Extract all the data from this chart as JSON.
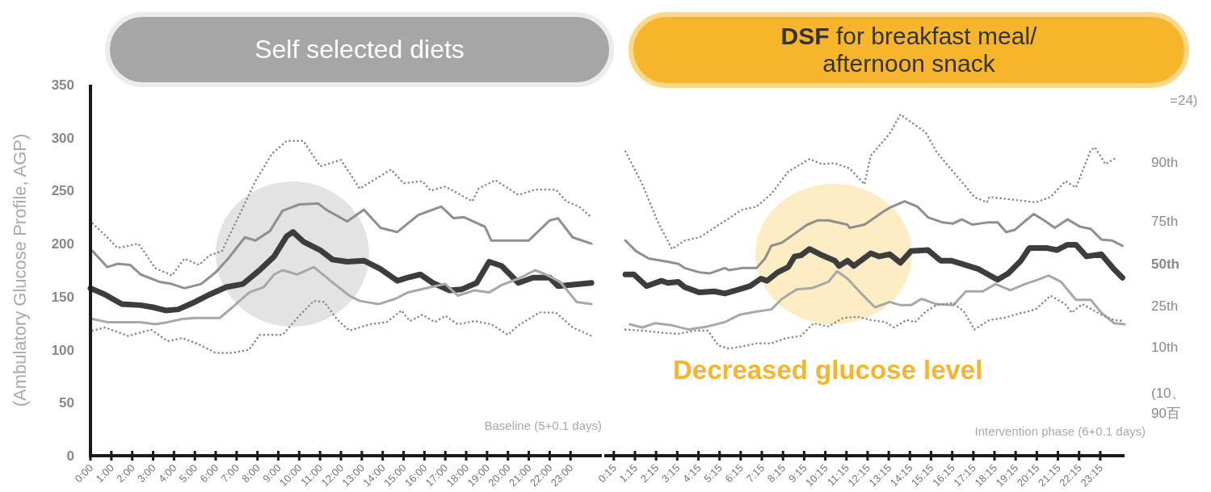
{
  "chart_data": [
    {
      "type": "line",
      "title": "Self selected diets",
      "ylabel": "(Ambulatory Glucose Profile, AGP)",
      "annotations": [
        "Baseline (5+0.1 days)"
      ],
      "xlim": [
        0,
        24.5
      ],
      "ylim": [
        0,
        350
      ],
      "yticks": [
        0,
        50,
        100,
        150,
        200,
        250,
        300,
        350
      ],
      "xticks": [
        {
          "value": 0,
          "label": "0:00"
        },
        {
          "value": 1,
          "label": "1:00"
        },
        {
          "value": 2,
          "label": "2:00"
        },
        {
          "value": 3,
          "label": "3:00"
        },
        {
          "value": 4,
          "label": "4:00"
        },
        {
          "value": 5,
          "label": "5:00"
        },
        {
          "value": 6,
          "label": "6:00"
        },
        {
          "value": 7,
          "label": "7:00"
        },
        {
          "value": 8,
          "label": "8:00"
        },
        {
          "value": 9,
          "label": "9:00"
        },
        {
          "value": 10,
          "label": "10:00"
        },
        {
          "value": 11,
          "label": "11:00"
        },
        {
          "value": 12,
          "label": "12:00"
        },
        {
          "value": 13,
          "label": "13:00"
        },
        {
          "value": 14,
          "label": "14:00"
        },
        {
          "value": 15,
          "label": "15:00"
        },
        {
          "value": 16,
          "label": "16:00"
        },
        {
          "value": 17,
          "label": "17:00"
        },
        {
          "value": 18,
          "label": "18:00"
        },
        {
          "value": 19,
          "label": "19:00"
        },
        {
          "value": 20,
          "label": "20:00"
        },
        {
          "value": 21,
          "label": "21:00"
        },
        {
          "value": 22,
          "label": "22:00"
        },
        {
          "value": 23,
          "label": "23:00"
        }
      ],
      "series": [
        {
          "color": "#8c8c8c",
          "line_style": "dotted",
          "x": [
            0.1,
            0.7,
            1.3,
            2.3,
            3.1,
            3.9,
            4.5,
            5.2,
            5.7,
            6.3,
            7.3,
            7.9,
            8.7,
            9.4,
            10.2,
            11.0,
            12.0,
            12.9,
            14.4,
            15.0,
            15.9,
            16.3,
            17.0,
            18.3,
            18.6,
            19.4,
            20.5,
            21.3,
            22.3,
            22.8,
            23.4,
            24.0
          ],
          "values": [
            219,
            208,
            196,
            200,
            177,
            170,
            186,
            180,
            189,
            193,
            234,
            259,
            285,
            297,
            297,
            273,
            279,
            252,
            270,
            257,
            259,
            250,
            254,
            240,
            252,
            260,
            246,
            251,
            251,
            240,
            235,
            225
          ]
        },
        {
          "color": "#8f8f8f",
          "line_style": "solid",
          "x": [
            0.1,
            0.8,
            1.3,
            1.9,
            2.4,
            3.3,
            3.9,
            4.5,
            5.3,
            6.0,
            6.6,
            7.4,
            7.9,
            8.6,
            9.2,
            10.0,
            10.9,
            11.3,
            12.3,
            13.1,
            13.9,
            14.7,
            15.7,
            16.8,
            17.4,
            17.9,
            18.9,
            19.2,
            21.0,
            22.0,
            22.4,
            23.1,
            24.0
          ],
          "values": [
            193,
            178,
            181,
            180,
            171,
            164,
            162,
            158,
            162,
            173,
            186,
            206,
            203,
            212,
            231,
            237,
            238,
            232,
            221,
            232,
            215,
            211,
            227,
            235,
            224,
            225,
            216,
            203,
            203,
            222,
            224,
            206,
            200
          ]
        },
        {
          "color": "#3d3d3d",
          "line_style": "solid",
          "x": [
            0.0,
            0.7,
            1.5,
            2.4,
            3.0,
            3.6,
            4.2,
            5.0,
            5.7,
            6.5,
            7.3,
            8.1,
            8.8,
            9.4,
            9.7,
            10.2,
            11.0,
            11.6,
            12.3,
            13.1,
            13.9,
            14.7,
            15.2,
            15.8,
            16.4,
            17.2,
            17.8,
            18.5,
            19.1,
            19.7,
            20.5,
            21.2,
            22.0,
            22.4,
            24.0
          ],
          "values": [
            158,
            152,
            143,
            142,
            140,
            137,
            138,
            145,
            152,
            159,
            162,
            175,
            188,
            207,
            211,
            202,
            194,
            185,
            183,
            184,
            176,
            165,
            168,
            171,
            163,
            156,
            157,
            163,
            183,
            179,
            163,
            168,
            168,
            160,
            163
          ]
        },
        {
          "color": "#a8a8a8",
          "line_style": "solid",
          "x": [
            0.1,
            0.8,
            1.6,
            2.4,
            3.1,
            3.7,
            4.4,
            5.0,
            6.2,
            6.8,
            7.6,
            8.3,
            8.8,
            9.2,
            9.9,
            10.7,
            11.5,
            12.4,
            12.9,
            13.8,
            14.6,
            15.2,
            16.3,
            17.0,
            17.6,
            18.4,
            19.1,
            19.7,
            20.5,
            21.3,
            21.8,
            22.5,
            23.3,
            24.0
          ],
          "values": [
            129,
            126,
            126,
            126,
            124,
            126,
            129,
            130,
            130,
            140,
            154,
            159,
            171,
            175,
            171,
            178,
            165,
            151,
            146,
            143,
            148,
            154,
            159,
            162,
            151,
            156,
            154,
            161,
            167,
            175,
            171,
            164,
            145,
            143
          ]
        },
        {
          "color": "#8c8c8c",
          "line_style": "dotted",
          "x": [
            0.1,
            0.7,
            1.8,
            2.9,
            3.7,
            4.4,
            5.2,
            6.0,
            6.8,
            7.6,
            8.1,
            9.2,
            10.0,
            10.7,
            11.2,
            11.8,
            12.4,
            13.4,
            14.2,
            14.9,
            15.3,
            15.9,
            16.5,
            17.0,
            17.6,
            18.4,
            19.2,
            20.0,
            20.5,
            21.5,
            22.3,
            23.1,
            24.0
          ],
          "values": [
            118,
            121,
            113,
            119,
            108,
            111,
            105,
            97,
            97,
            100,
            114,
            114,
            132,
            146,
            145,
            129,
            118,
            124,
            126,
            137,
            127,
            133,
            126,
            132,
            124,
            127,
            124,
            114,
            123,
            135,
            135,
            121,
            113
          ]
        }
      ]
    },
    {
      "type": "line",
      "title": "**DSF** for breakfast meal/ afternoon snack",
      "annotations": [
        "Intervention phase (6+0.1 days)",
        "Decreased glucose level",
        "=24)",
        "(10、",
        "90百"
      ],
      "xlim": [
        -0.2,
        24.4
      ],
      "ylim": [
        0,
        350
      ],
      "tick_labels": "x",
      "xticks": [
        {
          "value": 0.25,
          "label": "0:15"
        },
        {
          "value": 1.25,
          "label": "1:15"
        },
        {
          "value": 2.25,
          "label": "2:15"
        },
        {
          "value": 3.25,
          "label": "3:15"
        },
        {
          "value": 4.25,
          "label": "4:15"
        },
        {
          "value": 5.25,
          "label": "5:15"
        },
        {
          "value": 6.25,
          "label": "6:15"
        },
        {
          "value": 7.25,
          "label": "7:15"
        },
        {
          "value": 8.25,
          "label": "8:15"
        },
        {
          "value": 9.25,
          "label": "9:15"
        },
        {
          "value": 10.25,
          "label": "10:15"
        },
        {
          "value": 11.25,
          "label": "11:15"
        },
        {
          "value": 12.25,
          "label": "12:15"
        },
        {
          "value": 13.25,
          "label": "13:15"
        },
        {
          "value": 14.25,
          "label": "14:15"
        },
        {
          "value": 15.25,
          "label": "15:15"
        },
        {
          "value": 16.25,
          "label": "16:15"
        },
        {
          "value": 17.25,
          "label": "17:15"
        },
        {
          "value": 18.25,
          "label": "18:15"
        },
        {
          "value": 19.25,
          "label": "19:15"
        },
        {
          "value": 20.25,
          "label": "20:15"
        },
        {
          "value": 21.25,
          "label": "21:15"
        },
        {
          "value": 22.25,
          "label": "22:15"
        },
        {
          "value": 23.25,
          "label": "23:15"
        }
      ],
      "series": [
        {
          "name": "90th",
          "color": "#8c8c8c",
          "line_style": "dotted",
          "x": [
            0.8,
            1.6,
            2.3,
            3.0,
            3.6,
            4.3,
            5.0,
            5.7,
            6.3,
            7.0,
            7.7,
            8.5,
            9.5,
            10.1,
            10.7,
            11.4,
            12.1,
            12.4,
            13.3,
            13.8,
            14.5,
            15.0,
            15.5,
            16.2,
            16.8,
            17.3,
            17.9,
            18.0,
            18.9,
            20.2,
            20.9,
            21.6,
            22.1,
            22.8,
            23.0,
            23.5,
            23.9,
            24.1
          ],
          "values": [
            287,
            256,
            222,
            195,
            203,
            206,
            215,
            224,
            232,
            235,
            247,
            268,
            280,
            275,
            276,
            271,
            256,
            283,
            304,
            322,
            312,
            305,
            287,
            270,
            256,
            244,
            239,
            244,
            242,
            239,
            244,
            259,
            253,
            288,
            291,
            275,
            280,
            280
          ]
        },
        {
          "name": "75th",
          "color": "#8f8f8f",
          "line_style": "solid",
          "x": [
            0.8,
            1.3,
            1.9,
            2.8,
            3.3,
            3.6,
            4.3,
            4.8,
            5.5,
            5.7,
            6.3,
            7.0,
            7.4,
            7.7,
            8.2,
            8.7,
            9.4,
            9.9,
            10.4,
            11.3,
            11.4,
            12.1,
            12.4,
            12.9,
            13.3,
            14.0,
            14.6,
            15.1,
            15.8,
            16.3,
            16.7,
            17.2,
            17.9,
            18.4,
            18.8,
            19.2,
            20.1,
            20.6,
            21.1,
            21.7,
            22.3,
            22.8,
            23.3,
            23.8,
            24.3
          ],
          "values": [
            203,
            193,
            186,
            183,
            181,
            177,
            173,
            172,
            177,
            175,
            177,
            177,
            186,
            198,
            201,
            208,
            218,
            222,
            222,
            218,
            215,
            218,
            222,
            229,
            234,
            240,
            235,
            225,
            220,
            219,
            223,
            218,
            220,
            220,
            211,
            213,
            228,
            222,
            215,
            223,
            216,
            214,
            204,
            203,
            198
          ]
        },
        {
          "name": "50th",
          "color": "#3d3d3d",
          "line_style": "solid",
          "x": [
            0.8,
            1.2,
            1.8,
            2.5,
            2.8,
            3.3,
            3.6,
            4.3,
            5.0,
            5.5,
            6.2,
            6.7,
            7.2,
            7.5,
            8.0,
            8.5,
            8.8,
            9.1,
            9.5,
            10.1,
            10.7,
            10.9,
            11.3,
            11.6,
            12.4,
            12.8,
            13.3,
            13.8,
            14.3,
            15.1,
            15.7,
            16.2,
            16.7,
            17.5,
            18.4,
            18.9,
            19.5,
            19.9,
            20.7,
            21.2,
            21.7,
            22.1,
            22.6,
            23.3,
            23.6,
            23.9,
            24.3
          ],
          "values": [
            171,
            171,
            160,
            165,
            163,
            164,
            159,
            154,
            155,
            153,
            157,
            160,
            167,
            165,
            173,
            178,
            188,
            189,
            195,
            189,
            184,
            179,
            184,
            179,
            191,
            188,
            190,
            182,
            193,
            194,
            184,
            184,
            181,
            176,
            166,
            172,
            184,
            196,
            196,
            194,
            199,
            199,
            188,
            190,
            183,
            176,
            168
          ]
        },
        {
          "name": "25th",
          "color": "#a8a8a8",
          "line_style": "solid",
          "x": [
            1.0,
            1.6,
            2.2,
            3.0,
            3.8,
            4.7,
            5.5,
            6.2,
            7.0,
            7.7,
            8.2,
            8.9,
            9.6,
            10.4,
            10.8,
            11.3,
            11.9,
            12.6,
            13.3,
            13.8,
            14.3,
            14.8,
            15.5,
            16.3,
            16.9,
            17.7,
            18.3,
            19.0,
            19.7,
            20.3,
            20.8,
            21.4,
            22.1,
            22.8,
            23.3,
            23.9,
            24.4
          ],
          "values": [
            124,
            121,
            125,
            123,
            119,
            122,
            126,
            133,
            136,
            138,
            148,
            157,
            158,
            164,
            174,
            167,
            154,
            140,
            145,
            142,
            142,
            148,
            143,
            142,
            155,
            155,
            162,
            156,
            162,
            166,
            170,
            164,
            147,
            147,
            135,
            125,
            124
          ]
        },
        {
          "name": "10th",
          "color": "#8c8c8c",
          "line_style": "dotted",
          "x": [
            0.8,
            1.6,
            2.5,
            3.3,
            4.1,
            4.7,
            5.2,
            5.7,
            6.3,
            7.0,
            7.7,
            8.4,
            9.1,
            9.7,
            10.4,
            11.1,
            11.8,
            12.4,
            13.1,
            13.5,
            14.1,
            14.5,
            15.0,
            15.5,
            16.3,
            16.8,
            17.3,
            18.0,
            18.7,
            19.4,
            20.2,
            20.9,
            21.6,
            21.9,
            22.4,
            23.3,
            23.9,
            24.4
          ],
          "values": [
            119,
            118,
            116,
            115,
            118,
            118,
            104,
            101,
            103,
            106,
            106,
            111,
            113,
            125,
            122,
            130,
            131,
            128,
            126,
            121,
            128,
            126,
            136,
            142,
            144,
            136,
            119,
            128,
            130,
            134,
            138,
            151,
            143,
            135,
            143,
            133,
            128,
            127
          ]
        }
      ]
    }
  ]
}
